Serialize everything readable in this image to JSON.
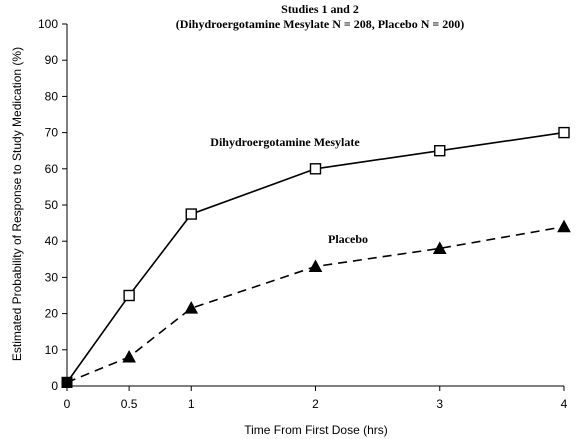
{
  "chart_data": {
    "type": "line",
    "title": "Studies 1 and 2",
    "subtitle": "(Dihydroergotamine Mesylate N = 208, Placebo N = 200)",
    "xlabel": "Time From First Dose (hrs)",
    "ylabel": "Estimated Probability of Response to Study Medication (%)",
    "xlim": [
      0,
      4
    ],
    "ylim": [
      0,
      100
    ],
    "x_ticks": [
      "0",
      "0.5",
      "1",
      "2",
      "3",
      "4"
    ],
    "y_ticks": [
      "0",
      "10",
      "20",
      "30",
      "40",
      "50",
      "60",
      "70",
      "80",
      "90",
      "100"
    ],
    "grid": false,
    "series": [
      {
        "name": "Dihydroergotamine Mesylate",
        "x": [
          0,
          0.5,
          1,
          2,
          3,
          4
        ],
        "values": [
          1,
          25,
          47.5,
          60,
          65,
          70
        ],
        "line": "solid",
        "marker": "open-square",
        "color": "#000000"
      },
      {
        "name": "Placebo",
        "x": [
          0,
          0.5,
          1,
          2,
          3,
          4
        ],
        "values": [
          1,
          8,
          21.5,
          33,
          38,
          44
        ],
        "line": "dashed",
        "marker": "filled-triangle",
        "color": "#000000"
      }
    ]
  }
}
